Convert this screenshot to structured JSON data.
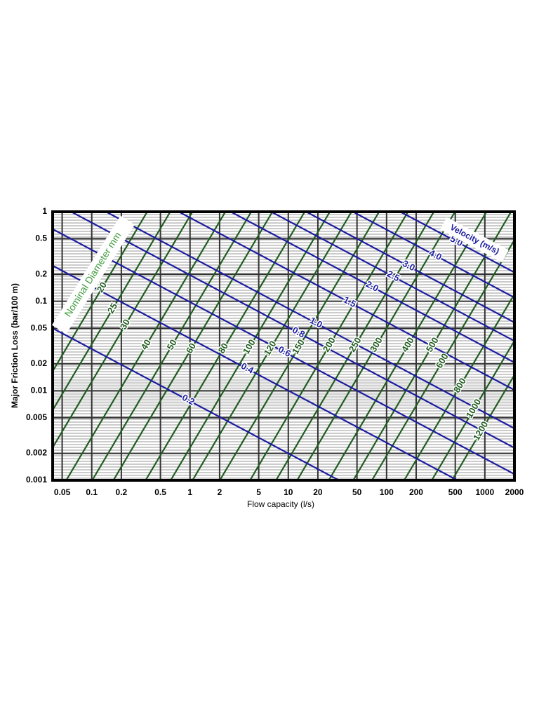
{
  "chart_data": {
    "type": "nomogram",
    "xlabel": "Flow capacity (l/s)",
    "ylabel": "Major Friction Loss (bar/100 m)",
    "diameter_title": "Nominal Diameter mm",
    "velocity_title": "Velocity (m/s)",
    "xscale": "log",
    "yscale": "log",
    "grid": true,
    "xlim": [
      0.04,
      2000
    ],
    "ylim": [
      0.001,
      1
    ],
    "xticks": [
      0.05,
      0.1,
      0.2,
      0.5,
      1,
      2,
      5,
      10,
      20,
      50,
      100,
      200,
      500,
      1000,
      2000
    ],
    "yticks": [
      1,
      0.5,
      0.2,
      0.1,
      0.05,
      0.02,
      0.01,
      0.005,
      0.002,
      0.001
    ],
    "diameter_color": "#1f5c1f",
    "velocity_color": "#1c1ca0",
    "diameters": [
      {
        "name": "20",
        "x": [
          0.0088,
          0.367
        ],
        "values": [
          0.001,
          1
        ]
      },
      {
        "name": "25",
        "x": [
          0.0151,
          0.63
        ],
        "values": [
          0.001,
          1
        ]
      },
      {
        "name": "30",
        "x": [
          0.0254,
          1.06
        ],
        "values": [
          0.001,
          1
        ]
      },
      {
        "name": "40",
        "x": [
          0.055,
          2.29
        ],
        "values": [
          0.001,
          1
        ]
      },
      {
        "name": "50",
        "x": [
          0.101,
          4.2
        ],
        "values": [
          0.001,
          1
        ]
      },
      {
        "name": "60",
        "x": [
          0.166,
          6.9
        ],
        "values": [
          0.001,
          1
        ]
      },
      {
        "name": "80",
        "x": [
          0.353,
          14.7
        ],
        "values": [
          0.001,
          1
        ]
      },
      {
        "name": "100",
        "x": [
          0.635,
          26.5
        ],
        "values": [
          0.001,
          1
        ]
      },
      {
        "name": "120",
        "x": [
          1.06,
          44
        ],
        "values": [
          0.001,
          1
        ]
      },
      {
        "name": "150",
        "x": [
          2.01,
          84
        ],
        "values": [
          0.001,
          1
        ]
      },
      {
        "name": "200",
        "x": [
          4.08,
          165
        ],
        "values": [
          0.001,
          1
        ]
      },
      {
        "name": "250",
        "x": [
          7.5,
          303
        ],
        "values": [
          0.001,
          1
        ]
      },
      {
        "name": "300",
        "x": [
          12.3,
          497
        ],
        "values": [
          0.001,
          1
        ]
      },
      {
        "name": "400",
        "x": [
          25.8,
          1040
        ],
        "values": [
          0.001,
          1
        ]
      },
      {
        "name": "500",
        "x": [
          45.8,
          1850
        ],
        "values": [
          0.001,
          1
        ]
      },
      {
        "name": "600",
        "x": [
          71,
          2960
        ],
        "values": [
          0.001,
          1
        ]
      },
      {
        "name": "800",
        "x": [
          151,
          6280
        ],
        "values": [
          0.001,
          1
        ]
      },
      {
        "name": "1000",
        "x": [
          288,
          12000
        ],
        "values": [
          0.001,
          1
        ]
      },
      {
        "name": "1200",
        "x": [
          463,
          19300
        ],
        "values": [
          0.001,
          1
        ]
      }
    ],
    "velocities": [
      {
        "name": "0.2",
        "x": [
          0.04,
          2000
        ],
        "values": [
          0.05,
          9.1e-05
        ]
      },
      {
        "name": "0.4",
        "x": [
          0.04,
          2000
        ],
        "values": [
          0.25,
          0.00046
        ]
      },
      {
        "name": "0.6",
        "x": [
          0.04,
          2000
        ],
        "values": [
          0.64,
          0.00117
        ]
      },
      {
        "name": "0.8",
        "x": [
          0.04,
          2000
        ],
        "values": [
          1.29,
          0.0023
        ]
      },
      {
        "name": "1.0",
        "x": [
          0.04,
          2000
        ],
        "values": [
          2.07,
          0.0038
        ]
      },
      {
        "name": "1.5",
        "x": [
          0.04,
          2000
        ],
        "values": [
          5.6,
          0.0102
        ]
      },
      {
        "name": "2.0",
        "x": [
          0.04,
          2000
        ],
        "values": [
          11.4,
          0.0207
        ]
      },
      {
        "name": "2.5",
        "x": [
          0.04,
          2000
        ],
        "values": [
          19.8,
          0.036
        ]
      },
      {
        "name": "3.0",
        "x": [
          0.04,
          2000
        ],
        "values": [
          32,
          0.058
        ]
      },
      {
        "name": "4.0",
        "x": [
          0.04,
          2000
        ],
        "values": [
          60.5,
          0.11
        ]
      },
      {
        "name": "5.0",
        "x": [
          0.04,
          2000
        ],
        "values": [
          116,
          0.21
        ]
      }
    ]
  }
}
